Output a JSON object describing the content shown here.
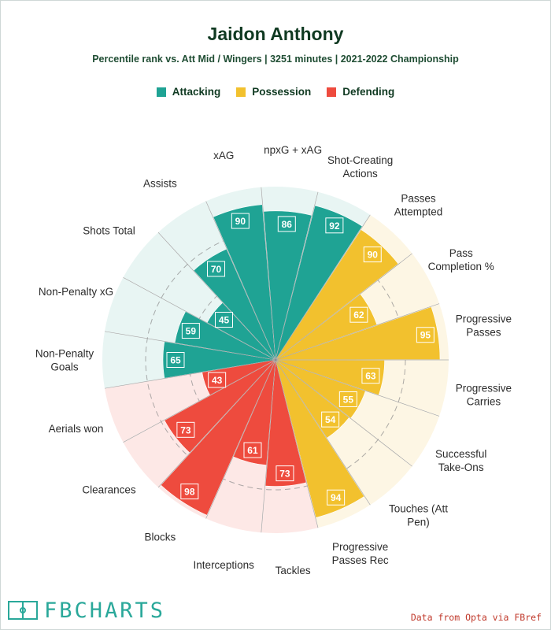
{
  "title": "Jaidon Anthony",
  "subtitle": "Percentile rank vs. Att Mid / Wingers | 3251 minutes | 2021-2022 Championship",
  "legend": [
    {
      "label": "Attacking",
      "color": "#1fa394"
    },
    {
      "label": "Possession",
      "color": "#f2c12e"
    },
    {
      "label": "Defending",
      "color": "#ee4b3e"
    }
  ],
  "chart_data": {
    "type": "radar",
    "title": "Jaidon Anthony",
    "subtitle": "Percentile rank vs. Att Mid / Wingers | 3251 minutes | 2021-2022 Championship",
    "range": [
      0,
      100
    ],
    "categories": [
      {
        "label": "Non-Penalty Goals",
        "value": 65,
        "group": "Attacking"
      },
      {
        "label": "Non-Penalty xG",
        "value": 59,
        "group": "Attacking"
      },
      {
        "label": "Shots Total",
        "value": 45,
        "group": "Attacking"
      },
      {
        "label": "Assists",
        "value": 70,
        "group": "Attacking"
      },
      {
        "label": "xAG",
        "value": 90,
        "group": "Attacking"
      },
      {
        "label": "npxG + xAG",
        "value": 86,
        "group": "Attacking"
      },
      {
        "label": "Shot-Creating Actions",
        "value": 92,
        "group": "Attacking"
      },
      {
        "label": "Passes Attempted",
        "value": 90,
        "group": "Possession"
      },
      {
        "label": "Pass Completion %",
        "value": 62,
        "group": "Possession"
      },
      {
        "label": "Progressive Passes",
        "value": 95,
        "group": "Possession"
      },
      {
        "label": "Progressive Carries",
        "value": 63,
        "group": "Possession"
      },
      {
        "label": "Successful Take-Ons",
        "value": 55,
        "group": "Possession"
      },
      {
        "label": "Touches (Att Pen)",
        "value": 54,
        "group": "Possession"
      },
      {
        "label": "Progressive Passes Rec",
        "value": 94,
        "group": "Possession"
      },
      {
        "label": "Tackles",
        "value": 73,
        "group": "Defending"
      },
      {
        "label": "Interceptions",
        "value": 61,
        "group": "Defending"
      },
      {
        "label": "Blocks",
        "value": 98,
        "group": "Defending"
      },
      {
        "label": "Clearances",
        "value": 73,
        "group": "Defending"
      },
      {
        "label": "Aerials won",
        "value": 43,
        "group": "Defending"
      }
    ],
    "group_colors": {
      "Attacking": {
        "fill": "#1fa394",
        "background": "#e8f5f3",
        "label_bg": "#1fa394"
      },
      "Possession": {
        "fill": "#f2c12e",
        "background": "#fdf6e4",
        "label_bg": "#f2c12e"
      },
      "Defending": {
        "fill": "#ee4b3e",
        "background": "#fde8e6",
        "label_bg": "#ee4b3e"
      }
    },
    "grid_rings": [
      25,
      50,
      75
    ],
    "grid": true,
    "legend_position": "top"
  },
  "branding": {
    "logo_text": "FBCHARTS",
    "credit": "Data from Opta via FBref"
  }
}
